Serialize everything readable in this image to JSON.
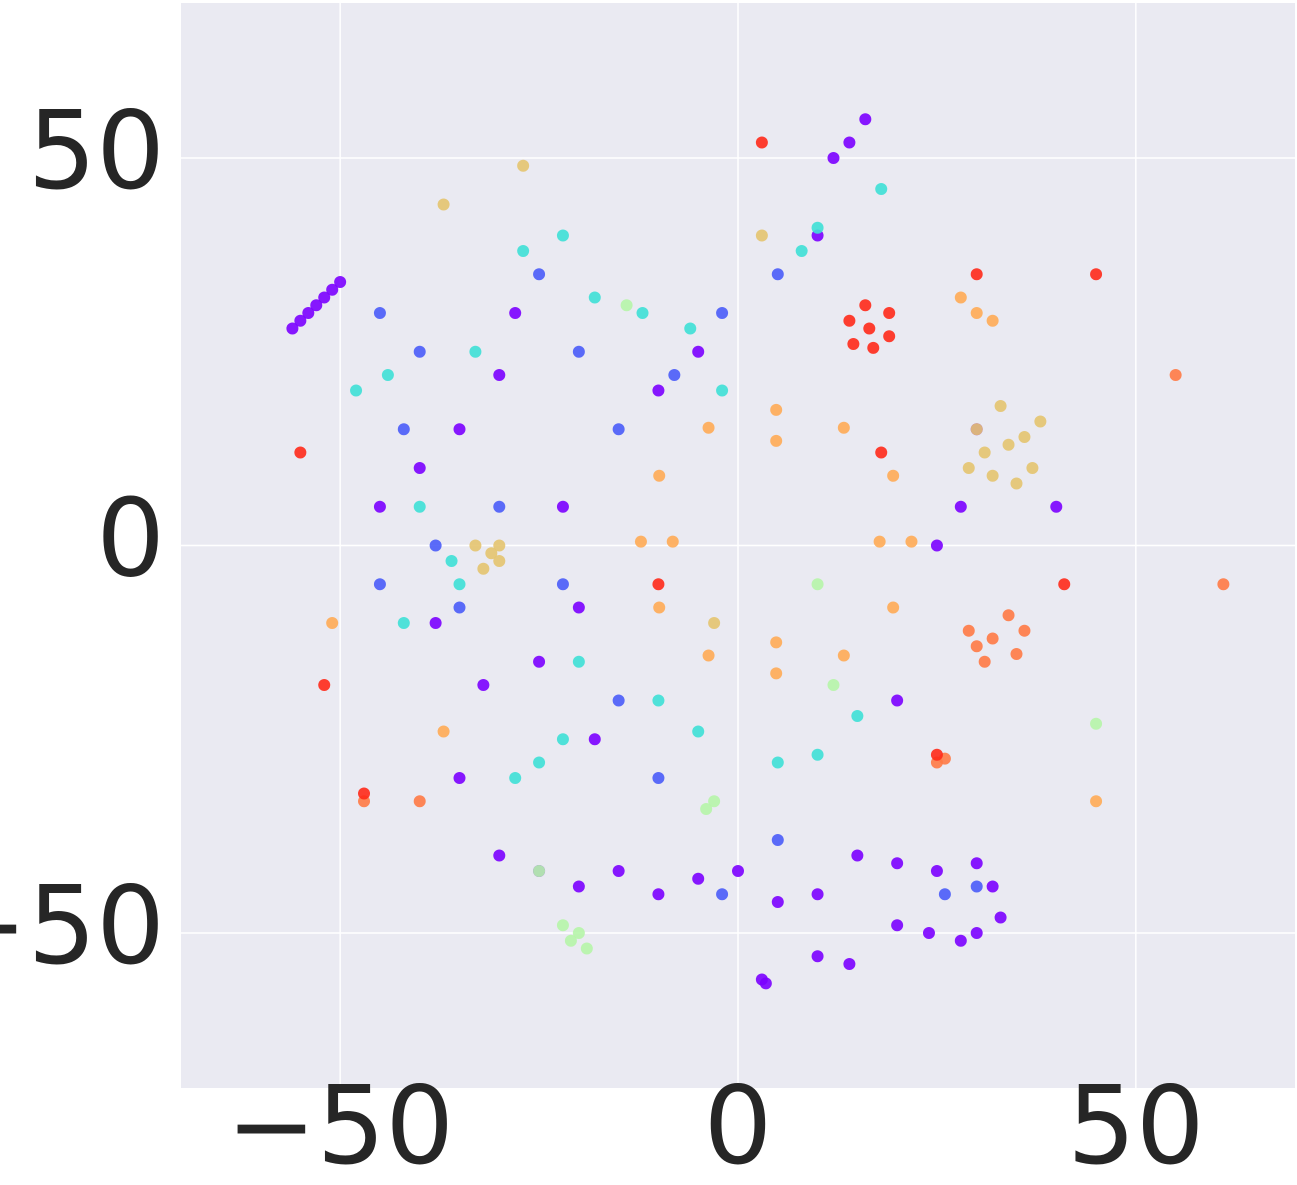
{
  "chart_data": {
    "type": "scatter",
    "grid": true,
    "xlim": [
      -70,
      70
    ],
    "ylim": [
      -70,
      70
    ],
    "xticks": [
      {
        "value": -50,
        "label": "−50"
      },
      0,
      50
    ],
    "yticks": [
      {
        "value": -50,
        "label": "−50"
      },
      0,
      50
    ],
    "series": [
      {
        "color": "#7b00ff",
        "x": [
          -56,
          -55,
          -54,
          -53,
          -52,
          -51,
          -50,
          -30,
          -25,
          -20,
          -15,
          -10,
          -5,
          0,
          5,
          10,
          15,
          20,
          25,
          30,
          32,
          33,
          30,
          28,
          24,
          20,
          3,
          3.5,
          14,
          10,
          -40,
          -35,
          -30,
          -45,
          -38,
          -32,
          -25,
          -20,
          -22,
          -28,
          -10,
          -5,
          12,
          14,
          16,
          10,
          20,
          -18,
          -35,
          30,
          40,
          28,
          25
        ],
        "y": [
          28,
          29,
          30,
          31,
          32,
          33,
          34,
          -40,
          -42,
          -44,
          -42,
          -45,
          -43,
          -42,
          -46,
          -45,
          -40,
          -41,
          -42,
          -41,
          -44,
          -48,
          -50,
          -51,
          -50,
          -49,
          -56,
          -56.5,
          -54,
          -53,
          10,
          15,
          22,
          5,
          -10,
          -18,
          -15,
          -8,
          5,
          30,
          20,
          25,
          50,
          52,
          55,
          40,
          -20,
          -25,
          -30,
          15,
          5,
          5,
          0
        ]
      },
      {
        "color": "#4a5cf8",
        "x": [
          -45,
          -40,
          -42,
          -38,
          -35,
          -25,
          -20,
          -15,
          -8,
          -2,
          5,
          -30,
          -22,
          -15,
          -10,
          5,
          -2,
          -45,
          30,
          26
        ],
        "y": [
          30,
          25,
          15,
          0,
          -8,
          35,
          25,
          15,
          22,
          30,
          35,
          5,
          -5,
          -20,
          -30,
          -38,
          -45,
          -5,
          -44,
          -45
        ]
      },
      {
        "color": "#3ee0d6",
        "x": [
          -48,
          -44,
          -40,
          -36,
          -42,
          -33,
          -27,
          -22,
          -18,
          -12,
          -6,
          -2,
          8,
          10,
          -20,
          -22,
          -25,
          -10,
          -5,
          5,
          10,
          15,
          -28,
          -35,
          18
        ],
        "y": [
          20,
          22,
          5,
          -2,
          -10,
          25,
          38,
          40,
          32,
          30,
          28,
          20,
          38,
          41,
          -15,
          -25,
          -28,
          -20,
          -24,
          -28,
          -27,
          -22,
          -30,
          -5,
          46
        ]
      },
      {
        "color": "#b6f5a8",
        "x": [
          -20,
          -21,
          -19,
          -22,
          -3,
          -4,
          -14,
          -25,
          10,
          45,
          12
        ],
        "y": [
          -50,
          -51,
          -52,
          -49,
          -33,
          -34,
          31,
          -42,
          -5,
          -23,
          -18
        ]
      },
      {
        "color": "#e4c46f",
        "x": [
          34,
          30,
          37,
          33,
          38,
          29,
          35,
          31,
          36,
          32,
          -31,
          -33,
          -30,
          -32,
          -30,
          -27,
          -37,
          3,
          -3
        ],
        "y": [
          13,
          15,
          10,
          18,
          16,
          10,
          8,
          12,
          14,
          9,
          -1,
          0,
          -2,
          -3,
          0,
          49,
          44,
          40,
          -10
        ]
      },
      {
        "color": "#ffab55",
        "x": [
          21.8,
          19.5,
          13.3,
          4.8,
          -3.7,
          -9.9,
          -12.2,
          -9.9,
          -3.7,
          4.8,
          13.3,
          19.5,
          17.8,
          4.8,
          -8.2,
          4.8,
          30,
          28,
          32,
          -37,
          45,
          -51
        ],
        "y": [
          0.5,
          9,
          15.2,
          17.5,
          15.2,
          9,
          0.5,
          -8,
          -14.2,
          -16.5,
          -14.2,
          -8,
          0.5,
          13.5,
          0.5,
          -12.5,
          30,
          32,
          29,
          -24,
          -33,
          -10
        ]
      },
      {
        "color": "#ff7a45",
        "x": [
          32,
          29,
          35,
          31,
          34,
          30,
          36,
          25,
          26,
          -47,
          -40,
          61,
          55
        ],
        "y": [
          -12,
          -11,
          -14,
          -15,
          -9,
          -13,
          -11,
          -28,
          -27.5,
          -33,
          -33,
          -5,
          22
        ]
      },
      {
        "color": "#ff2a1a",
        "x": [
          16.5,
          14,
          19,
          16,
          17,
          14.5,
          19,
          3,
          -47,
          -52,
          -55,
          45,
          30,
          25,
          -10,
          18,
          41
        ],
        "y": [
          28,
          29,
          27,
          31,
          25.5,
          26,
          30,
          52,
          -32,
          -18,
          12,
          35,
          35,
          -27,
          -5,
          12,
          -5
        ]
      }
    ]
  }
}
